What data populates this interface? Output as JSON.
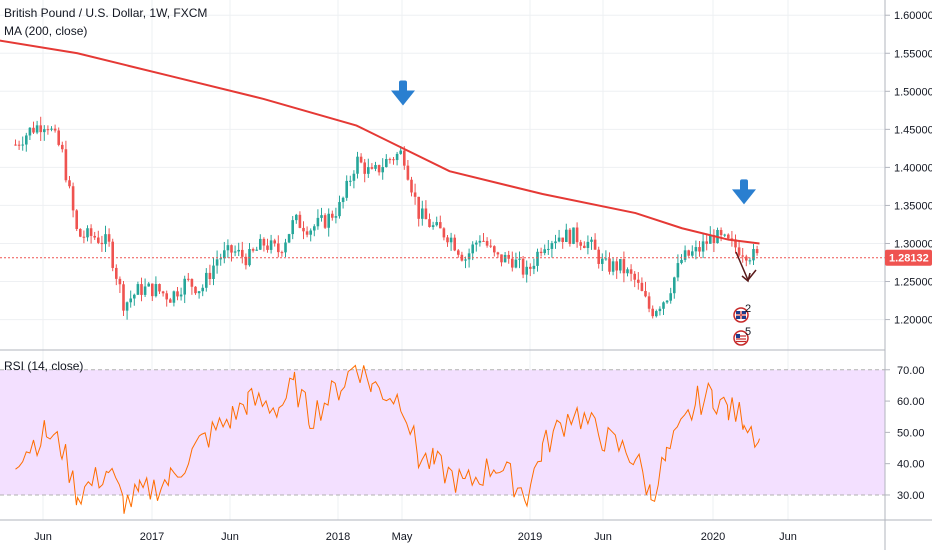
{
  "header": {
    "title": "British Pound / U.S. Dollar, 1W, FXCM",
    "ma_label": "MA (200, close)",
    "rsi_label": "RSI (14, close)"
  },
  "price_tag": "1.28132",
  "colors": {
    "up": "#26a69a",
    "down": "#ef5350",
    "ma": "#e53935",
    "rsi": "#ff6d00",
    "rsi_band": "#f3e0ff",
    "arrow": "#2a7fd0",
    "price_line": "#ef5350"
  },
  "icons": [
    "down-arrow-marker-icon",
    "forecast-arrow-icon",
    "uk-flag-event-icon",
    "us-flag-event-icon"
  ],
  "event_badges": [
    "2",
    "5"
  ],
  "chart_data": [
    {
      "type": "candlestick",
      "title": "British Pound / U.S. Dollar, 1W, FXCM",
      "ylim": [
        1.16,
        1.62
      ],
      "y_ticks": [
        "1.60000",
        "1.55000",
        "1.50000",
        "1.45000",
        "1.40000",
        "1.35000",
        "1.30000",
        "1.25000",
        "1.20000"
      ],
      "x_ticks": [
        "Jun",
        "2017",
        "Jun",
        "2018",
        "May",
        "2019",
        "Jun",
        "2020",
        "Jun"
      ],
      "last_price": 1.28132,
      "close_path": [
        [
          "2016-03",
          1.43
        ],
        [
          "2016-04",
          1.45
        ],
        [
          "2016-05",
          1.46
        ],
        [
          "2016-06",
          1.42
        ],
        [
          "2016-07",
          1.31
        ],
        [
          "2016-08",
          1.31
        ],
        [
          "2016-09",
          1.3
        ],
        [
          "2016-10",
          1.22
        ],
        [
          "2016-11",
          1.24
        ],
        [
          "2016-12",
          1.24
        ],
        [
          "2017-01",
          1.23
        ],
        [
          "2017-02",
          1.25
        ],
        [
          "2017-03",
          1.24
        ],
        [
          "2017-04",
          1.28
        ],
        [
          "2017-05",
          1.29
        ],
        [
          "2017-06",
          1.28
        ],
        [
          "2017-07",
          1.3
        ],
        [
          "2017-08",
          1.29
        ],
        [
          "2017-09",
          1.33
        ],
        [
          "2017-10",
          1.32
        ],
        [
          "2017-11",
          1.33
        ],
        [
          "2017-12",
          1.35
        ],
        [
          "2018-01",
          1.41
        ],
        [
          "2018-02",
          1.39
        ],
        [
          "2018-03",
          1.41
        ],
        [
          "2018-04",
          1.42
        ],
        [
          "2018-05",
          1.34
        ],
        [
          "2018-06",
          1.32
        ],
        [
          "2018-07",
          1.31
        ],
        [
          "2018-08",
          1.28
        ],
        [
          "2018-09",
          1.31
        ],
        [
          "2018-10",
          1.28
        ],
        [
          "2018-11",
          1.28
        ],
        [
          "2018-12",
          1.26
        ],
        [
          "2019-01",
          1.3
        ],
        [
          "2019-02",
          1.31
        ],
        [
          "2019-03",
          1.31
        ],
        [
          "2019-04",
          1.3
        ],
        [
          "2019-05",
          1.27
        ],
        [
          "2019-06",
          1.27
        ],
        [
          "2019-07",
          1.25
        ],
        [
          "2019-08",
          1.21
        ],
        [
          "2019-09",
          1.23
        ],
        [
          "2019-10",
          1.28
        ],
        [
          "2019-11",
          1.29
        ],
        [
          "2019-12",
          1.31
        ],
        [
          "2020-01",
          1.3
        ],
        [
          "2020-02",
          1.29
        ],
        [
          "2020-03",
          1.28
        ]
      ],
      "ma_200": [
        [
          "2016-01",
          1.57
        ],
        [
          "2016-07",
          1.55
        ],
        [
          "2017-01",
          1.52
        ],
        [
          "2017-07",
          1.49
        ],
        [
          "2018-01",
          1.455
        ],
        [
          "2018-04",
          1.425
        ],
        [
          "2018-07",
          1.395
        ],
        [
          "2019-01",
          1.365
        ],
        [
          "2019-07",
          1.34
        ],
        [
          "2019-10",
          1.32
        ],
        [
          "2020-01",
          1.305
        ],
        [
          "2020-03",
          1.3
        ]
      ],
      "markers": [
        "2018-04",
        "2020-02"
      ]
    },
    {
      "type": "line",
      "title": "RSI (14, close)",
      "ylim": [
        22,
        76
      ],
      "y_ticks": [
        "70.00",
        "60.00",
        "50.00",
        "40.00",
        "30.00"
      ],
      "band": [
        30,
        70
      ],
      "x": [
        "2016-03",
        "2016-05",
        "2016-06",
        "2016-07",
        "2016-09",
        "2016-10",
        "2016-11",
        "2017-01",
        "2017-03",
        "2017-05",
        "2017-06",
        "2017-08",
        "2017-09",
        "2017-10",
        "2017-12",
        "2018-01",
        "2018-02",
        "2018-04",
        "2018-05",
        "2018-06",
        "2018-08",
        "2018-10",
        "2018-12",
        "2019-01",
        "2019-03",
        "2019-05",
        "2019-07",
        "2019-08",
        "2019-09",
        "2019-11",
        "2019-12",
        "2020-01",
        "2020-02",
        "2020-03"
      ],
      "values": [
        42,
        50,
        45,
        30,
        38,
        27,
        30,
        35,
        47,
        55,
        60,
        58,
        65,
        55,
        65,
        72,
        65,
        60,
        42,
        40,
        33,
        40,
        30,
        45,
        57,
        48,
        42,
        30,
        42,
        60,
        62,
        57,
        55,
        48
      ]
    }
  ]
}
